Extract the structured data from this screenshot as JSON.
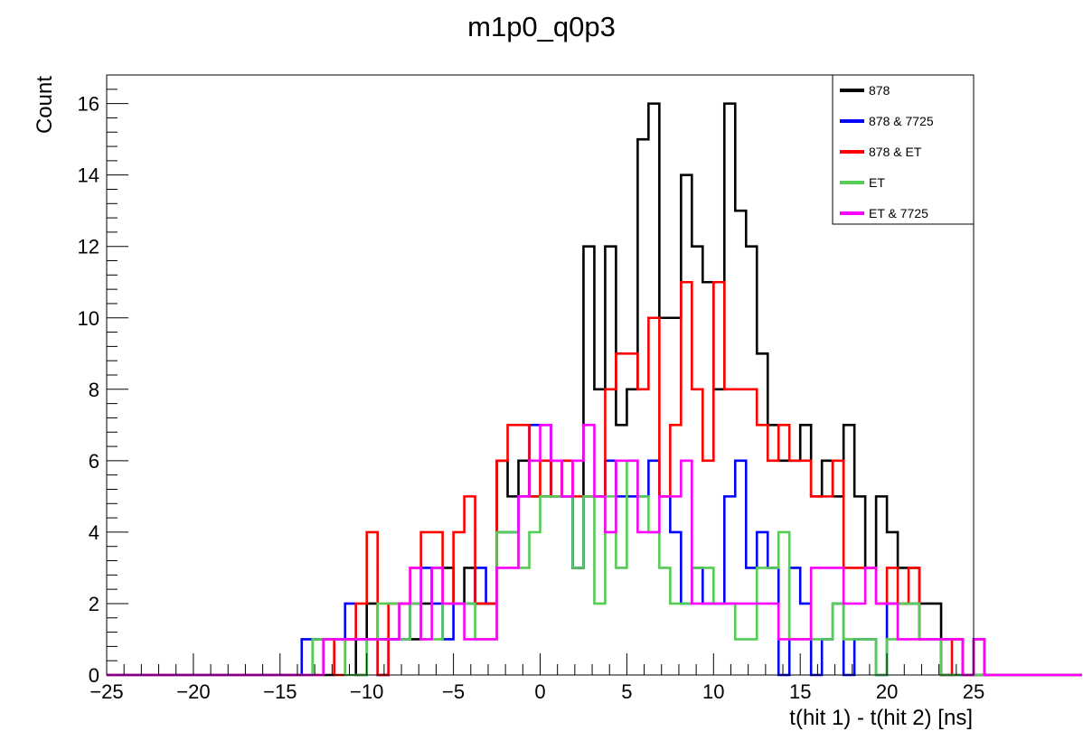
{
  "chart_data": {
    "type": "histogram",
    "title": "m1p0_q0p3",
    "xlabel": "t(hit 1) - t(hit 2) [ns]",
    "ylabel": "Count",
    "xlim": [
      -25,
      25
    ],
    "ylim": [
      0,
      16.8
    ],
    "bin_width": 0.625,
    "bin_start": -25,
    "x_ticks": [
      -25,
      -20,
      -15,
      -10,
      -5,
      0,
      5,
      10,
      15,
      20,
      25
    ],
    "x_tick_labels": [
      "−25",
      "−20",
      "−15",
      "−10",
      "−5",
      "0",
      "5",
      "10",
      "15",
      "20",
      "25"
    ],
    "y_ticks": [
      0,
      2,
      4,
      6,
      8,
      10,
      12,
      14,
      16
    ],
    "y_tick_labels": [
      "0",
      "2",
      "4",
      "6",
      "8",
      "10",
      "12",
      "14",
      "16"
    ],
    "grid": false,
    "legend_position": "top-right",
    "series": [
      {
        "name": "878",
        "color": "#000000",
        "values": [
          0,
          0,
          0,
          0,
          0,
          0,
          0,
          0,
          0,
          0,
          0,
          0,
          0,
          0,
          0,
          0,
          0,
          0,
          0,
          1,
          0,
          1,
          1,
          0,
          2,
          1,
          1,
          2,
          1,
          2,
          3,
          3,
          2,
          3,
          2,
          2,
          6,
          5,
          6,
          5,
          5,
          6,
          5,
          3,
          12,
          8,
          12,
          7,
          8,
          15,
          16,
          10,
          10,
          14,
          12,
          11,
          8,
          16,
          13,
          12,
          9,
          7,
          6,
          6,
          7,
          5,
          6,
          5,
          7,
          5,
          3,
          5,
          4,
          3,
          3,
          2,
          2,
          1,
          1,
          0,
          1,
          0,
          0,
          0,
          0,
          0,
          0,
          0,
          0,
          0
        ]
      },
      {
        "name": "878 & 7725",
        "color": "#0000ff",
        "values": [
          0,
          0,
          0,
          0,
          0,
          0,
          0,
          0,
          0,
          0,
          0,
          0,
          0,
          0,
          0,
          0,
          0,
          0,
          1,
          1,
          1,
          1,
          2,
          1,
          1,
          0,
          1,
          1,
          2,
          3,
          2,
          1,
          2,
          2,
          3,
          2,
          4,
          4,
          5,
          7,
          7,
          5,
          5,
          3,
          5,
          5,
          6,
          5,
          5,
          5,
          6,
          5,
          4,
          2,
          3,
          2,
          2,
          5,
          6,
          3,
          4,
          3,
          0,
          3,
          2,
          0,
          1,
          2,
          0,
          1,
          1,
          0,
          2,
          2,
          2,
          1,
          1,
          0,
          0,
          0,
          0,
          0,
          0,
          0,
          0,
          0,
          0,
          0,
          0,
          0
        ]
      },
      {
        "name": "878 & ET",
        "color": "#ff0000",
        "values": [
          0,
          0,
          0,
          0,
          0,
          0,
          0,
          0,
          0,
          0,
          0,
          0,
          0,
          0,
          0,
          0,
          0,
          0,
          0,
          0,
          1,
          0,
          1,
          2,
          4,
          0,
          2,
          2,
          3,
          4,
          4,
          2,
          4,
          5,
          2,
          2,
          6,
          7,
          7,
          5,
          6,
          5,
          6,
          5,
          5,
          5,
          8,
          9,
          9,
          8,
          10,
          5,
          7,
          11,
          8,
          6,
          11,
          8,
          8,
          8,
          7,
          6,
          7,
          6,
          6,
          5,
          5,
          6,
          3,
          3,
          3,
          2,
          3,
          2,
          3,
          1,
          1,
          0,
          1,
          0,
          0,
          0,
          0,
          0,
          0,
          0,
          0,
          0,
          0,
          0
        ]
      },
      {
        "name": "ET",
        "color": "#55cc55",
        "values": [
          0,
          0,
          0,
          0,
          0,
          0,
          0,
          0,
          0,
          0,
          0,
          0,
          0,
          0,
          0,
          0,
          0,
          0,
          0,
          1,
          1,
          1,
          0,
          0,
          1,
          2,
          2,
          1,
          2,
          1,
          1,
          2,
          2,
          2,
          1,
          1,
          4,
          4,
          3,
          4,
          5,
          5,
          5,
          3,
          5,
          2,
          5,
          3,
          6,
          5,
          4,
          3,
          2,
          2,
          3,
          3,
          2,
          2,
          1,
          1,
          3,
          3,
          4,
          1,
          1,
          1,
          1,
          2,
          1,
          1,
          1,
          0,
          1,
          2,
          2,
          1,
          1,
          0,
          0,
          0,
          0,
          0,
          0,
          0,
          0,
          0,
          0,
          0,
          0,
          0
        ]
      },
      {
        "name": "ET & 7725",
        "color": "#ff00ff",
        "values": [
          0,
          0,
          0,
          0,
          0,
          0,
          0,
          0,
          0,
          0,
          0,
          0,
          0,
          0,
          0,
          0,
          0,
          0,
          0,
          0,
          1,
          1,
          1,
          1,
          1,
          1,
          1,
          2,
          3,
          1,
          3,
          2,
          2,
          1,
          1,
          1,
          3,
          3,
          5,
          6,
          7,
          6,
          5,
          6,
          7,
          5,
          4,
          6,
          6,
          4,
          4,
          5,
          5,
          6,
          2,
          2,
          2,
          2,
          2,
          2,
          2,
          2,
          1,
          1,
          1,
          3,
          3,
          3,
          2,
          2,
          3,
          2,
          2,
          1,
          1,
          1,
          1,
          1,
          1,
          0,
          1,
          0,
          0,
          0,
          0,
          0,
          0,
          0,
          0,
          0
        ]
      }
    ]
  }
}
